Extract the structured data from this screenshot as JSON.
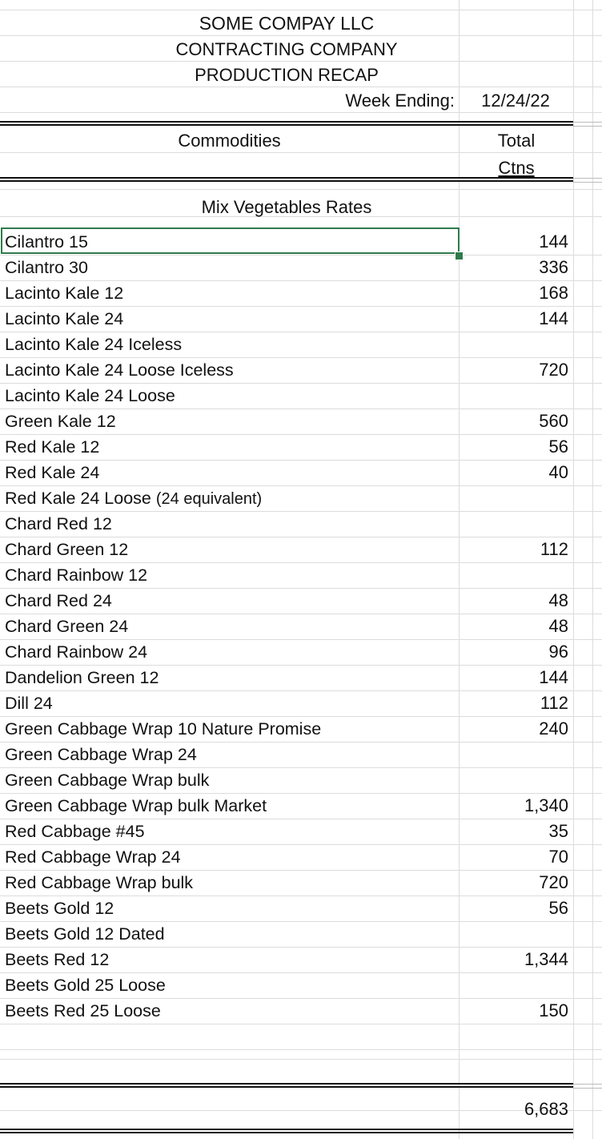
{
  "header": {
    "company": "SOME COMPAY LLC",
    "company_type": "CONTRACTING COMPANY",
    "report": "PRODUCTION RECAP",
    "week_label": "Week Ending:",
    "week_value": "12/24/22"
  },
  "columns": {
    "commodities": "Commodities",
    "total_line1": "Total",
    "total_line2": "Ctns"
  },
  "section_title": "Mix Vegetables Rates",
  "rows": [
    {
      "name": "Cilantro 15",
      "suffix": "",
      "value": "144"
    },
    {
      "name": "Cilantro 30",
      "suffix": "",
      "value": "336"
    },
    {
      "name": "Lacinto Kale 12",
      "suffix": "",
      "value": "168"
    },
    {
      "name": "Lacinto Kale 24",
      "suffix": "",
      "value": "144"
    },
    {
      "name": "Lacinto Kale 24 Iceless",
      "suffix": "",
      "value": ""
    },
    {
      "name": "Lacinto Kale 24 Loose Iceless",
      "suffix": "",
      "value": "720"
    },
    {
      "name": "Lacinto Kale 24 Loose",
      "suffix": "",
      "value": ""
    },
    {
      "name": "Green Kale 12",
      "suffix": "",
      "value": "560"
    },
    {
      "name": "Red Kale 12",
      "suffix": "",
      "value": "56"
    },
    {
      "name": "Red Kale 24",
      "suffix": "",
      "value": "40"
    },
    {
      "name": "Red Kale 24 Loose ",
      "suffix": "(24 equivalent)",
      "value": ""
    },
    {
      "name": "Chard Red 12",
      "suffix": "",
      "value": ""
    },
    {
      "name": "Chard Green 12",
      "suffix": "",
      "value": "112"
    },
    {
      "name": "Chard Rainbow 12",
      "suffix": "",
      "value": ""
    },
    {
      "name": "Chard Red 24",
      "suffix": "",
      "value": "48"
    },
    {
      "name": "Chard Green 24",
      "suffix": "",
      "value": "48"
    },
    {
      "name": "Chard Rainbow 24",
      "suffix": "",
      "value": "96"
    },
    {
      "name": "Dandelion Green 12",
      "suffix": "",
      "value": "144"
    },
    {
      "name": "Dill 24",
      "suffix": "",
      "value": "112"
    },
    {
      "name": "Green Cabbage Wrap 10 Nature Promise",
      "suffix": "",
      "value": "240"
    },
    {
      "name": "Green Cabbage Wrap 24",
      "suffix": "",
      "value": ""
    },
    {
      "name": "Green Cabbage Wrap bulk",
      "suffix": "",
      "value": ""
    },
    {
      "name": "Green Cabbage Wrap bulk Market",
      "suffix": "",
      "value": "1,340"
    },
    {
      "name": "Red Cabbage #45",
      "suffix": "",
      "value": "35"
    },
    {
      "name": "Red Cabbage Wrap 24",
      "suffix": "",
      "value": "70"
    },
    {
      "name": "Red Cabbage Wrap bulk",
      "suffix": "",
      "value": "720"
    },
    {
      "name": "Beets Gold 12",
      "suffix": "",
      "value": "56"
    },
    {
      "name": "Beets Gold 12 Dated",
      "suffix": "",
      "value": ""
    },
    {
      "name": "Beets Red 12",
      "suffix": "",
      "value": "1,344"
    },
    {
      "name": "Beets Gold 25 Loose",
      "suffix": "",
      "value": ""
    },
    {
      "name": "Beets Red 25 Loose",
      "suffix": "",
      "value": "150"
    }
  ],
  "grand_total": "6,683",
  "colors": {
    "selection": "#2f7a4c",
    "gridline": "#dcdcdc",
    "text": "#111111"
  }
}
